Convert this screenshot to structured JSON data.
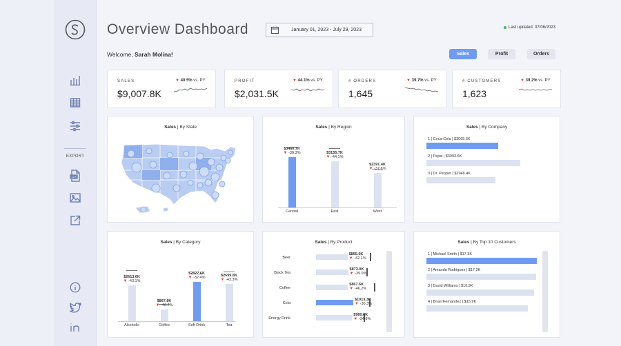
{
  "sidebar": {
    "export_label": "EXPORT",
    "icons": [
      "logo-icon",
      "bar-chart-icon",
      "table-icon",
      "sliders-icon",
      "pdf-icon",
      "image-icon",
      "share-icon",
      "info-icon",
      "twitter-icon",
      "linkedin-icon"
    ]
  },
  "header": {
    "title": "Overview Dashboard",
    "date_range": "January 01, 2023 - July 29, 2023",
    "last_updated": "Last updated: 07/06/2023",
    "welcome_prefix": "Welcome, ",
    "user_name": "Sarah Molina!"
  },
  "toggles": [
    {
      "label": "Sales",
      "active": true
    },
    {
      "label": "Profit",
      "active": false
    },
    {
      "label": "Orders",
      "active": false
    }
  ],
  "kpis": [
    {
      "label": "SALES",
      "value": "$9,007.8K",
      "change": "40.5%",
      "suffix": " vs. PY"
    },
    {
      "label": "PROFIT",
      "value": "$2,031.5K",
      "change": "44.1%",
      "suffix": " vs. PY"
    },
    {
      "label": "# ORDERS",
      "value": "1,645",
      "change": "39.7%",
      "suffix": " vs. PY"
    },
    {
      "label": "# CUSTOMERS",
      "value": "1,623",
      "change": "39.2%",
      "suffix": " vs. PY"
    }
  ],
  "charts": {
    "state": {
      "title_bold": "Sales",
      "title_rest": " | By State"
    },
    "region": {
      "title_bold": "Sales",
      "title_rest": " | By Region"
    },
    "company": {
      "title_bold": "Sales",
      "title_rest": " | By Company"
    },
    "category": {
      "title_bold": "Sales",
      "title_rest": " | By Category"
    },
    "product": {
      "title_bold": "Sales",
      "title_rest": " | By Product"
    },
    "customers": {
      "title_bold": "Sales",
      "title_rest": " | By Top 10 Customers"
    }
  },
  "chart_data": [
    {
      "type": "bar",
      "name": "region",
      "categories": [
        "Central",
        "East",
        "West"
      ],
      "values": [
        3460.7,
        3155.7,
        2391.4
      ],
      "value_labels": [
        "$3460.7K",
        "$3155.7K",
        "$2391.4K"
      ],
      "change_labels": [
        "-38.3%",
        "-44.1%",
        "-37.6%"
      ],
      "py_values": [
        4120,
        4080,
        2600
      ],
      "ylim": [
        0,
        4500
      ]
    },
    {
      "type": "bar",
      "name": "company",
      "orientation": "horizontal",
      "categories": [
        "1 | Coca-Cola | $3065.6K",
        "2 | Pepsi | $3993.6K",
        "3 | Dr. Pepper | $2948.4K"
      ],
      "values": [
        3065.6,
        3993.6,
        2948.4
      ]
    },
    {
      "type": "bar",
      "name": "category",
      "categories": [
        "Alcoholic",
        "Coffee",
        "Soft Drink",
        "Tea"
      ],
      "values": [
        2613.6,
        867.8,
        2827.6,
        2699.8
      ],
      "value_labels": [
        "$2613.6K",
        "$867.8K",
        "$2827.6K",
        "$2699.8K"
      ],
      "change_labels": [
        "-43.1%",
        "-46.2%",
        "-32.4%",
        "-43.3%"
      ],
      "py_values": [
        3700,
        1250,
        3450,
        3600
      ],
      "ylim": [
        0,
        4500
      ]
    },
    {
      "type": "bar",
      "name": "product",
      "orientation": "horizontal",
      "categories": [
        "Beer",
        "Black Tea",
        "Coffee",
        "Cola",
        "Energy Drink"
      ],
      "values": [
        855.0,
        873.0,
        867.6,
        1013.3,
        980.6
      ],
      "value_labels": [
        "$855.0K",
        "$873.0K",
        "$867.6K",
        "$1013.3K",
        "$980.6K"
      ],
      "change_labels": [
        "-42.1%",
        "-39.9%",
        "-46.2%",
        "-30.3%",
        "-24.8%"
      ],
      "py_values": [
        1460,
        1370,
        1580,
        1440,
        1290
      ]
    },
    {
      "type": "bar",
      "name": "customers",
      "orientation": "horizontal",
      "categories": [
        "1 | Michael Smith | $17.3K",
        "2 | Amanda Rodriguez | $17.2K",
        "3 | David Williams | $16.9K",
        "4 | Brian Fernandez | $15.9K"
      ],
      "values": [
        17.3,
        17.2,
        16.9,
        15.9
      ]
    }
  ]
}
